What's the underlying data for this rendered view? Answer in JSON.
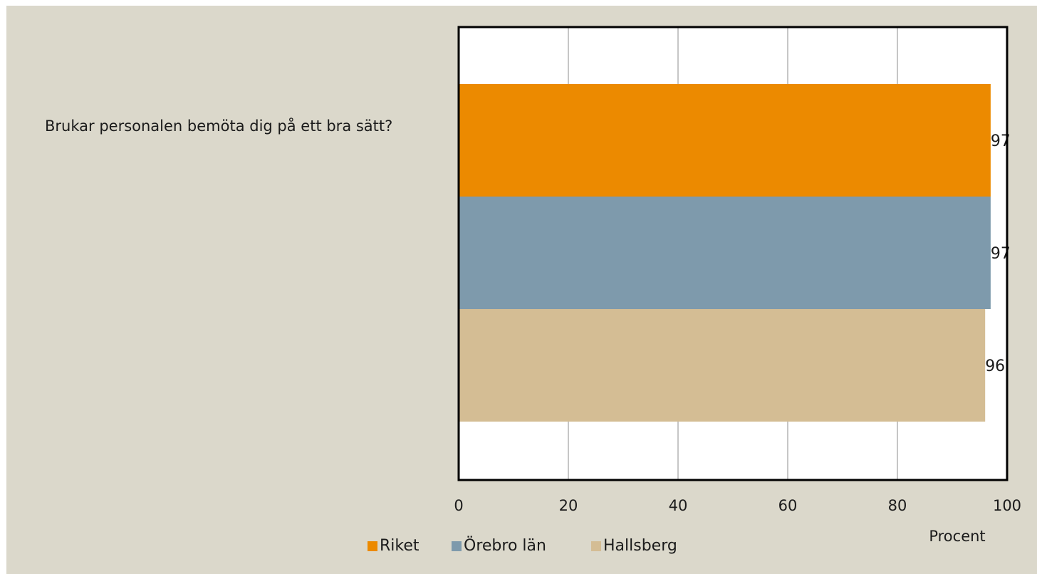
{
  "question": "Brukar personalen bemöta dig på ett bra sätt?",
  "chart_data": {
    "type": "bar",
    "orientation": "horizontal",
    "categories": [
      "Brukar personalen bemöta dig på ett bra sätt?"
    ],
    "series": [
      {
        "name": "Riket",
        "color": "#ec8a00",
        "values": [
          97
        ]
      },
      {
        "name": "Örebro län",
        "color": "#7e9aac",
        "values": [
          97
        ]
      },
      {
        "name": "Hallsberg",
        "color": "#d4bd94",
        "values": [
          96
        ]
      }
    ],
    "xlim": [
      0,
      100
    ],
    "xticks": [
      0,
      20,
      40,
      60,
      80,
      100
    ],
    "xlabel": "Procent",
    "grid": "vertical",
    "legend_position": "bottom"
  }
}
